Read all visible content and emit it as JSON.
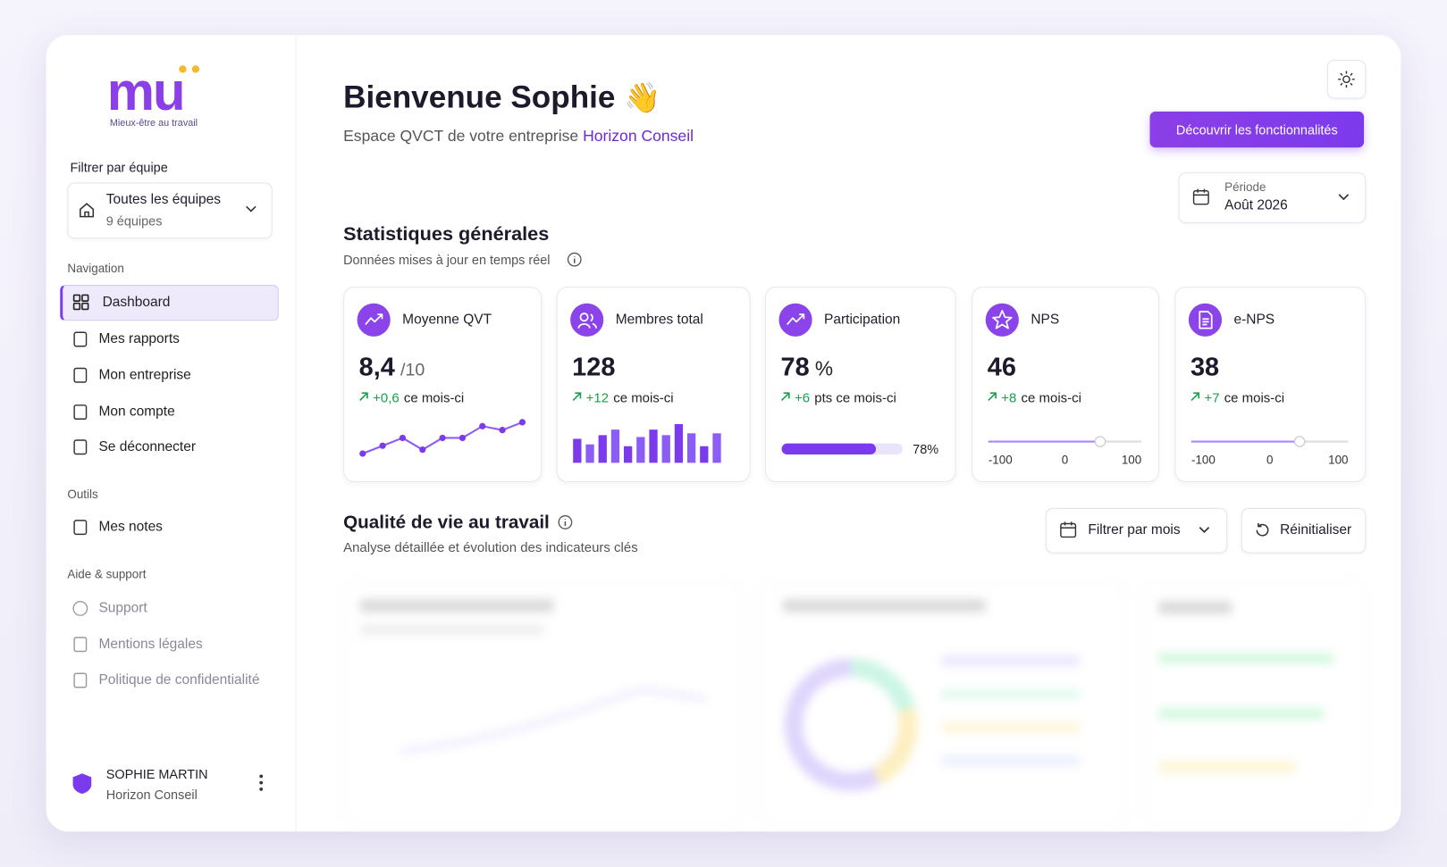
{
  "sidebar": {
    "logo": "mu",
    "tagline": "Mieux-être au travail",
    "filter_label": "Filtrer par équipe",
    "team_select": {
      "label": "Toutes les équipes",
      "sub": "9 équipes"
    },
    "sections": [
      {
        "title": "Navigation",
        "items": [
          "Dashboard",
          "Mes rapports",
          "Mon entreprise",
          "Mon compte",
          "Se déconnecter"
        ]
      },
      {
        "title": "Outils",
        "items": [
          "Mes notes"
        ]
      },
      {
        "title": "Aide & support",
        "items": [
          "Support",
          "Mentions légales",
          "Politique de confidentialité"
        ]
      }
    ],
    "user": {
      "name": "SOPHIE MARTIN",
      "company": "Horizon Conseil"
    }
  },
  "header": {
    "title": "Bienvenue Sophie",
    "emoji": "👋",
    "subtitle": "Espace QVCT de votre entreprise",
    "company": "Horizon Conseil",
    "cta": "Découvrir les fonctionnalités",
    "period": {
      "label": "Période",
      "value": "Août 2026"
    }
  },
  "stats": {
    "title": "Statistiques générales",
    "subtitle": "Données mises à jour en temps réel",
    "cards": [
      {
        "label": "Moyenne QVT",
        "value": "8,4",
        "unit": "/10",
        "delta": "+0,6",
        "delta_text": "ce mois-ci",
        "chart": {
          "type": "line",
          "values": [
            7.6,
            7.8,
            8.0,
            7.7,
            8.0,
            8.0,
            8.3,
            8.2,
            8.4
          ]
        }
      },
      {
        "label": "Membres total",
        "value": "128",
        "delta": "+12",
        "delta_text": "ce mois-ci",
        "chart": {
          "type": "bar",
          "values": [
            26,
            20,
            30,
            36,
            18,
            28,
            36,
            30,
            42,
            32,
            18,
            32
          ]
        }
      },
      {
        "label": "Participation",
        "value": "78",
        "unit": "%",
        "delta": "+6",
        "delta_text": "pts ce mois-ci",
        "chart": {
          "type": "progress",
          "value": 78,
          "value_label": "78%",
          "xlim": [
            0,
            100
          ]
        }
      },
      {
        "label": "NPS",
        "value": "46",
        "delta": "+8",
        "delta_text": "ce mois-ci",
        "chart": {
          "type": "slider",
          "value": 46,
          "xlim": [
            -100,
            100
          ],
          "xticks": [
            -100,
            0,
            100
          ]
        }
      },
      {
        "label": "e-NPS",
        "value": "38",
        "delta": "+7",
        "delta_text": "ce mois-ci",
        "chart": {
          "type": "slider",
          "value": 38,
          "xlim": [
            -100,
            100
          ],
          "xticks": [
            -100,
            0,
            100
          ]
        }
      }
    ]
  },
  "quality": {
    "title": "Qualité de vie au travail",
    "subtitle": "Analyse détaillée et évolution des indicateurs clés",
    "filter": "Filtrer par mois",
    "reset": "Réinitialiser"
  }
}
